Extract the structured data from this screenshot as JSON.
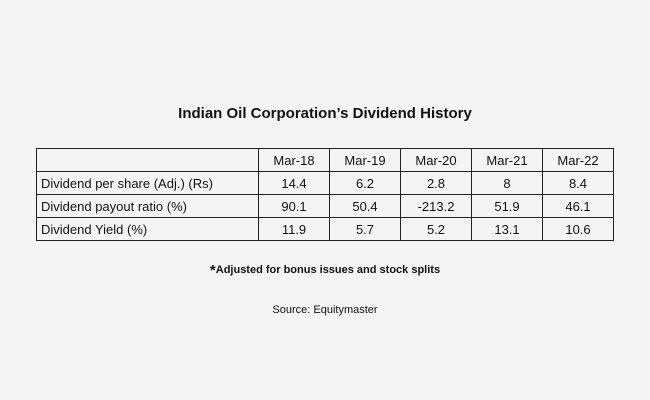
{
  "title": "Indian Oil Corporation’s Dividend History",
  "table": {
    "columns": [
      "Mar-18",
      "Mar-19",
      "Mar-20",
      "Mar-21",
      "Mar-22"
    ],
    "rows": [
      [
        "Dividend per share (Adj.) (Rs)",
        "14.4",
        "6.2",
        "2.8",
        "8",
        "8.4"
      ],
      [
        "Dividend payout ratio (%)",
        "90.1",
        "50.4",
        "-213.2",
        "51.9",
        "46.1"
      ],
      [
        "Dividend Yield (%)",
        "11.9",
        "5.7",
        "5.2",
        "13.1",
        "10.6"
      ]
    ]
  },
  "footnote": {
    "marker": "*",
    "text": "Adjusted for bonus issues and stock splits"
  },
  "source": "Source: Equitymaster"
}
